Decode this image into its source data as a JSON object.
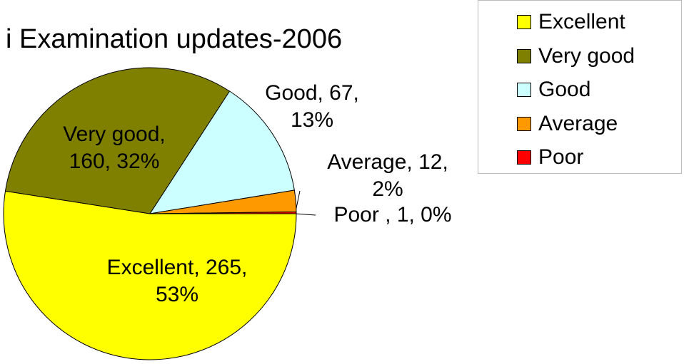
{
  "chart_data": {
    "type": "pie",
    "title": "i Examination updates-2006",
    "categories": [
      "Excellent",
      "Very good",
      "Good",
      "Average",
      "Poor"
    ],
    "values": [
      265,
      160,
      67,
      12,
      1
    ],
    "value_labels": [
      "Excellent, 265, 53%",
      "Very good, 160, 32%",
      "Good, 67, 13%",
      "Average, 12, 2%",
      "Poor , 1, 0%"
    ],
    "colors": [
      "#ffff00",
      "#808000",
      "#ccffff",
      "#ff9900",
      "#ff0000"
    ],
    "legend": "top-right"
  }
}
